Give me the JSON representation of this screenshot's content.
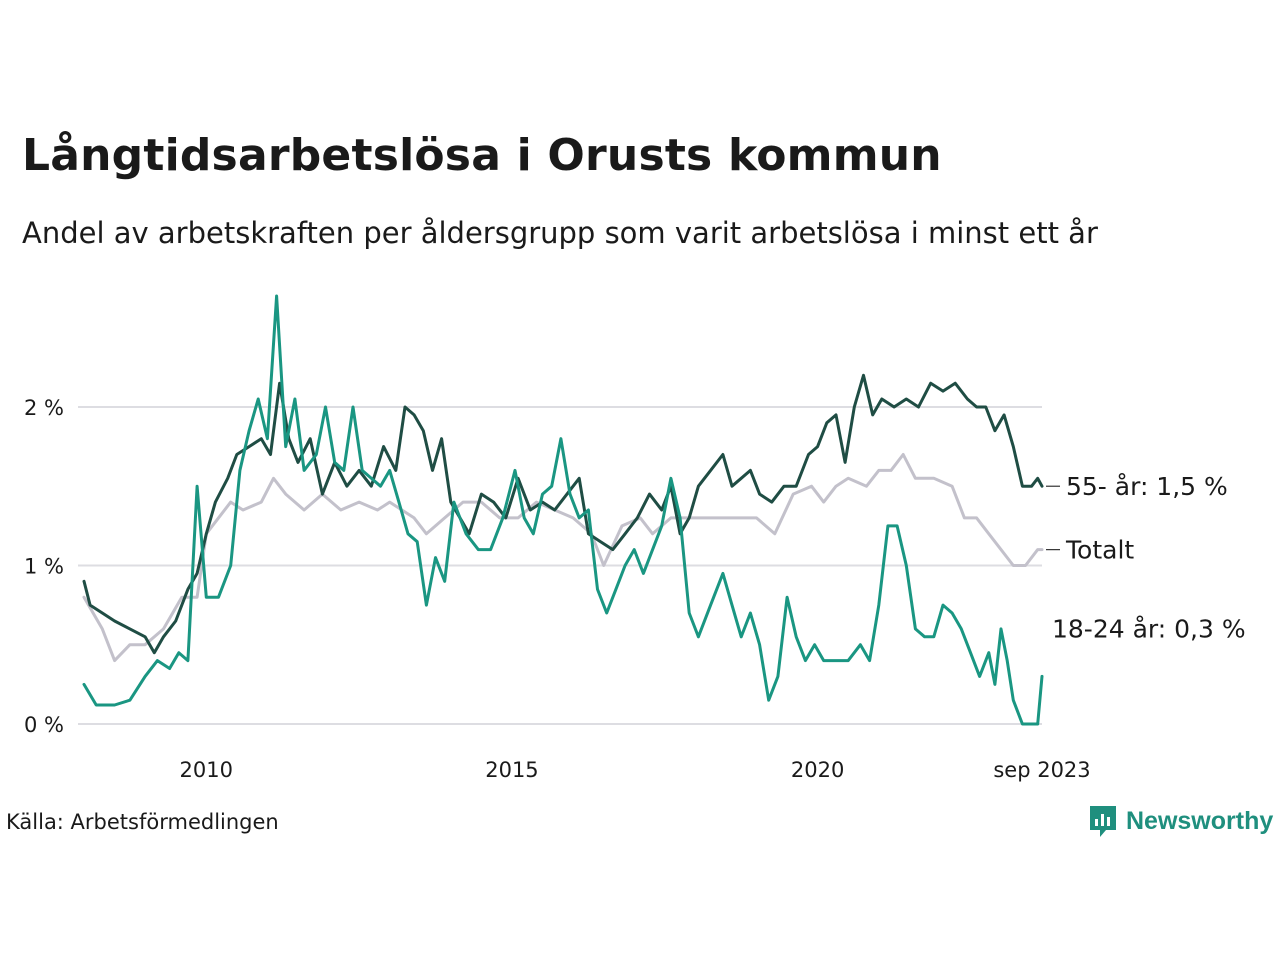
{
  "title": "Långtidsarbetslösa i Orusts kommun",
  "subtitle": "Andel av arbetskraften per åldersgrupp som varit arbetslösa i minst ett år",
  "source": "Källa: Arbetsförmedlingen",
  "logo_text": "Newsworthy",
  "colors": {
    "age55": "#1f4d44",
    "total": "#c3c1cb",
    "age18": "#1a9682",
    "grid": "#dddde2",
    "logo": "#1f8f7e"
  },
  "chart_data": {
    "type": "line",
    "title": "Långtidsarbetslösa i Orusts kommun",
    "ylabel": "",
    "xlabel": "",
    "xlim": [
      2008.0,
      2023.67
    ],
    "ylim": [
      0,
      2.7
    ],
    "y_ticks": [
      {
        "value": 0,
        "label": "0 %"
      },
      {
        "value": 1,
        "label": "1 %"
      },
      {
        "value": 2,
        "label": "2 %"
      }
    ],
    "x_ticks": [
      {
        "value": 2010,
        "label": "2010"
      },
      {
        "value": 2015,
        "label": "2015"
      },
      {
        "value": 2020,
        "label": "2020"
      },
      {
        "value": 2023.67,
        "label": "sep 2023"
      }
    ],
    "series": [
      {
        "name": "Totalt",
        "label": "Totalt",
        "color_key": "total",
        "points": [
          [
            2008.0,
            0.8
          ],
          [
            2008.3,
            0.6
          ],
          [
            2008.5,
            0.4
          ],
          [
            2008.75,
            0.5
          ],
          [
            2009.0,
            0.5
          ],
          [
            2009.3,
            0.6
          ],
          [
            2009.6,
            0.8
          ],
          [
            2009.85,
            0.8
          ],
          [
            2010.0,
            1.2
          ],
          [
            2010.2,
            1.3
          ],
          [
            2010.4,
            1.4
          ],
          [
            2010.6,
            1.35
          ],
          [
            2010.9,
            1.4
          ],
          [
            2011.1,
            1.55
          ],
          [
            2011.3,
            1.45
          ],
          [
            2011.6,
            1.35
          ],
          [
            2011.9,
            1.45
          ],
          [
            2012.2,
            1.35
          ],
          [
            2012.5,
            1.4
          ],
          [
            2012.8,
            1.35
          ],
          [
            2013.0,
            1.4
          ],
          [
            2013.2,
            1.35
          ],
          [
            2013.4,
            1.3
          ],
          [
            2013.6,
            1.2
          ],
          [
            2013.9,
            1.3
          ],
          [
            2014.2,
            1.4
          ],
          [
            2014.5,
            1.4
          ],
          [
            2014.8,
            1.3
          ],
          [
            2015.1,
            1.3
          ],
          [
            2015.4,
            1.4
          ],
          [
            2015.7,
            1.35
          ],
          [
            2016.0,
            1.3
          ],
          [
            2016.3,
            1.2
          ],
          [
            2016.5,
            1.0
          ],
          [
            2016.8,
            1.25
          ],
          [
            2017.1,
            1.3
          ],
          [
            2017.3,
            1.2
          ],
          [
            2017.6,
            1.3
          ],
          [
            2018.0,
            1.3
          ],
          [
            2018.5,
            1.3
          ],
          [
            2019.0,
            1.3
          ],
          [
            2019.3,
            1.2
          ],
          [
            2019.6,
            1.45
          ],
          [
            2019.9,
            1.5
          ],
          [
            2020.1,
            1.4
          ],
          [
            2020.3,
            1.5
          ],
          [
            2020.5,
            1.55
          ],
          [
            2020.8,
            1.5
          ],
          [
            2021.0,
            1.6
          ],
          [
            2021.2,
            1.6
          ],
          [
            2021.4,
            1.7
          ],
          [
            2021.6,
            1.55
          ],
          [
            2021.9,
            1.55
          ],
          [
            2022.2,
            1.5
          ],
          [
            2022.4,
            1.3
          ],
          [
            2022.6,
            1.3
          ],
          [
            2022.8,
            1.2
          ],
          [
            2023.0,
            1.1
          ],
          [
            2023.2,
            1.0
          ],
          [
            2023.4,
            1.0
          ],
          [
            2023.6,
            1.1
          ],
          [
            2023.67,
            1.1
          ]
        ]
      },
      {
        "name": "55- år",
        "label": "55- år: 1,5 %",
        "color_key": "age55",
        "points": [
          [
            2008.0,
            0.9
          ],
          [
            2008.1,
            0.75
          ],
          [
            2008.3,
            0.7
          ],
          [
            2008.5,
            0.65
          ],
          [
            2008.75,
            0.6
          ],
          [
            2009.0,
            0.55
          ],
          [
            2009.15,
            0.45
          ],
          [
            2009.3,
            0.55
          ],
          [
            2009.5,
            0.65
          ],
          [
            2009.7,
            0.85
          ],
          [
            2009.85,
            0.95
          ],
          [
            2010.0,
            1.2
          ],
          [
            2010.15,
            1.4
          ],
          [
            2010.35,
            1.55
          ],
          [
            2010.5,
            1.7
          ],
          [
            2010.7,
            1.75
          ],
          [
            2010.9,
            1.8
          ],
          [
            2011.05,
            1.7
          ],
          [
            2011.2,
            2.15
          ],
          [
            2011.35,
            1.8
          ],
          [
            2011.5,
            1.65
          ],
          [
            2011.7,
            1.8
          ],
          [
            2011.9,
            1.45
          ],
          [
            2012.1,
            1.65
          ],
          [
            2012.3,
            1.5
          ],
          [
            2012.5,
            1.6
          ],
          [
            2012.7,
            1.5
          ],
          [
            2012.9,
            1.75
          ],
          [
            2013.1,
            1.6
          ],
          [
            2013.25,
            2.0
          ],
          [
            2013.4,
            1.95
          ],
          [
            2013.55,
            1.85
          ],
          [
            2013.7,
            1.6
          ],
          [
            2013.85,
            1.8
          ],
          [
            2014.0,
            1.4
          ],
          [
            2014.15,
            1.3
          ],
          [
            2014.3,
            1.2
          ],
          [
            2014.5,
            1.45
          ],
          [
            2014.7,
            1.4
          ],
          [
            2014.9,
            1.3
          ],
          [
            2015.1,
            1.55
          ],
          [
            2015.3,
            1.35
          ],
          [
            2015.5,
            1.4
          ],
          [
            2015.7,
            1.35
          ],
          [
            2015.9,
            1.45
          ],
          [
            2016.1,
            1.55
          ],
          [
            2016.25,
            1.2
          ],
          [
            2016.45,
            1.15
          ],
          [
            2016.65,
            1.1
          ],
          [
            2016.85,
            1.2
          ],
          [
            2017.05,
            1.3
          ],
          [
            2017.25,
            1.45
          ],
          [
            2017.45,
            1.35
          ],
          [
            2017.6,
            1.5
          ],
          [
            2017.75,
            1.2
          ],
          [
            2017.9,
            1.3
          ],
          [
            2018.05,
            1.5
          ],
          [
            2018.25,
            1.6
          ],
          [
            2018.45,
            1.7
          ],
          [
            2018.6,
            1.5
          ],
          [
            2018.75,
            1.55
          ],
          [
            2018.9,
            1.6
          ],
          [
            2019.05,
            1.45
          ],
          [
            2019.25,
            1.4
          ],
          [
            2019.45,
            1.5
          ],
          [
            2019.65,
            1.5
          ],
          [
            2019.85,
            1.7
          ],
          [
            2020.0,
            1.75
          ],
          [
            2020.15,
            1.9
          ],
          [
            2020.3,
            1.95
          ],
          [
            2020.45,
            1.65
          ],
          [
            2020.6,
            2.0
          ],
          [
            2020.75,
            2.2
          ],
          [
            2020.9,
            1.95
          ],
          [
            2021.05,
            2.05
          ],
          [
            2021.25,
            2.0
          ],
          [
            2021.45,
            2.05
          ],
          [
            2021.65,
            2.0
          ],
          [
            2021.85,
            2.15
          ],
          [
            2022.05,
            2.1
          ],
          [
            2022.25,
            2.15
          ],
          [
            2022.45,
            2.05
          ],
          [
            2022.6,
            2.0
          ],
          [
            2022.75,
            2.0
          ],
          [
            2022.9,
            1.85
          ],
          [
            2023.05,
            1.95
          ],
          [
            2023.2,
            1.75
          ],
          [
            2023.35,
            1.5
          ],
          [
            2023.5,
            1.5
          ],
          [
            2023.6,
            1.55
          ],
          [
            2023.67,
            1.5
          ]
        ]
      },
      {
        "name": "18-24 år",
        "label": "18-24 år: 0,3 %",
        "color_key": "age18",
        "points": [
          [
            2008.0,
            0.25
          ],
          [
            2008.2,
            0.12
          ],
          [
            2008.5,
            0.12
          ],
          [
            2008.75,
            0.15
          ],
          [
            2009.0,
            0.3
          ],
          [
            2009.2,
            0.4
          ],
          [
            2009.4,
            0.35
          ],
          [
            2009.55,
            0.45
          ],
          [
            2009.7,
            0.4
          ],
          [
            2009.85,
            1.5
          ],
          [
            2010.0,
            0.8
          ],
          [
            2010.2,
            0.8
          ],
          [
            2010.4,
            1.0
          ],
          [
            2010.55,
            1.6
          ],
          [
            2010.7,
            1.85
          ],
          [
            2010.85,
            2.05
          ],
          [
            2011.0,
            1.8
          ],
          [
            2011.15,
            2.7
          ],
          [
            2011.3,
            1.75
          ],
          [
            2011.45,
            2.05
          ],
          [
            2011.6,
            1.6
          ],
          [
            2011.8,
            1.7
          ],
          [
            2011.95,
            2.0
          ],
          [
            2012.1,
            1.65
          ],
          [
            2012.25,
            1.6
          ],
          [
            2012.4,
            2.0
          ],
          [
            2012.55,
            1.6
          ],
          [
            2012.7,
            1.55
          ],
          [
            2012.85,
            1.5
          ],
          [
            2013.0,
            1.6
          ],
          [
            2013.15,
            1.4
          ],
          [
            2013.3,
            1.2
          ],
          [
            2013.45,
            1.15
          ],
          [
            2013.6,
            0.75
          ],
          [
            2013.75,
            1.05
          ],
          [
            2013.9,
            0.9
          ],
          [
            2014.05,
            1.4
          ],
          [
            2014.25,
            1.2
          ],
          [
            2014.45,
            1.1
          ],
          [
            2014.65,
            1.1
          ],
          [
            2014.85,
            1.3
          ],
          [
            2015.05,
            1.6
          ],
          [
            2015.2,
            1.3
          ],
          [
            2015.35,
            1.2
          ],
          [
            2015.5,
            1.45
          ],
          [
            2015.65,
            1.5
          ],
          [
            2015.8,
            1.8
          ],
          [
            2015.95,
            1.45
          ],
          [
            2016.1,
            1.3
          ],
          [
            2016.25,
            1.35
          ],
          [
            2016.4,
            0.85
          ],
          [
            2016.55,
            0.7
          ],
          [
            2016.7,
            0.85
          ],
          [
            2016.85,
            1.0
          ],
          [
            2017.0,
            1.1
          ],
          [
            2017.15,
            0.95
          ],
          [
            2017.3,
            1.1
          ],
          [
            2017.45,
            1.25
          ],
          [
            2017.6,
            1.55
          ],
          [
            2017.75,
            1.3
          ],
          [
            2017.9,
            0.7
          ],
          [
            2018.05,
            0.55
          ],
          [
            2018.25,
            0.75
          ],
          [
            2018.45,
            0.95
          ],
          [
            2018.6,
            0.75
          ],
          [
            2018.75,
            0.55
          ],
          [
            2018.9,
            0.7
          ],
          [
            2019.05,
            0.5
          ],
          [
            2019.2,
            0.15
          ],
          [
            2019.35,
            0.3
          ],
          [
            2019.5,
            0.8
          ],
          [
            2019.65,
            0.55
          ],
          [
            2019.8,
            0.4
          ],
          [
            2019.95,
            0.5
          ],
          [
            2020.1,
            0.4
          ],
          [
            2020.3,
            0.4
          ],
          [
            2020.5,
            0.4
          ],
          [
            2020.7,
            0.5
          ],
          [
            2020.85,
            0.4
          ],
          [
            2021.0,
            0.75
          ],
          [
            2021.15,
            1.25
          ],
          [
            2021.3,
            1.25
          ],
          [
            2021.45,
            1.0
          ],
          [
            2021.6,
            0.6
          ],
          [
            2021.75,
            0.55
          ],
          [
            2021.9,
            0.55
          ],
          [
            2022.05,
            0.75
          ],
          [
            2022.2,
            0.7
          ],
          [
            2022.35,
            0.6
          ],
          [
            2022.5,
            0.45
          ],
          [
            2022.65,
            0.3
          ],
          [
            2022.8,
            0.45
          ],
          [
            2022.9,
            0.25
          ],
          [
            2023.0,
            0.6
          ],
          [
            2023.1,
            0.4
          ],
          [
            2023.2,
            0.15
          ],
          [
            2023.35,
            0.0
          ],
          [
            2023.6,
            0.0
          ],
          [
            2023.67,
            0.3
          ]
        ]
      }
    ]
  }
}
